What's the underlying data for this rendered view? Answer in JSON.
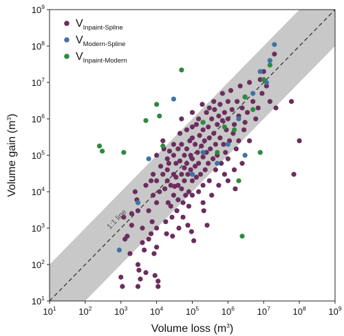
{
  "chart_data": {
    "type": "scatter",
    "xlabel": "Volume loss",
    "xlabel_unit": "m",
    "xlabel_unit_exp": "3",
    "ylabel": "Volume gain",
    "ylabel_unit": "m",
    "ylabel_unit_exp": "3",
    "x_scale": "log",
    "y_scale": "log",
    "xlim": [
      10,
      1000000000
    ],
    "ylim": [
      10,
      1000000000
    ],
    "ticks": [
      {
        "base": "10",
        "exp": "1",
        "value": 10
      },
      {
        "base": "10",
        "exp": "2",
        "value": 100
      },
      {
        "base": "10",
        "exp": "3",
        "value": 1000
      },
      {
        "base": "10",
        "exp": "4",
        "value": 10000
      },
      {
        "base": "10",
        "exp": "5",
        "value": 100000
      },
      {
        "base": "10",
        "exp": "6",
        "value": 1000000
      },
      {
        "base": "10",
        "exp": "7",
        "value": 10000000
      },
      {
        "base": "10",
        "exp": "8",
        "value": 100000000
      },
      {
        "base": "10",
        "exp": "9",
        "value": 1000000000
      }
    ],
    "grid": false,
    "legend_position": "top-left",
    "reference_line": {
      "label": "1:1 line",
      "style": "dashed",
      "color": "#333333"
    },
    "band": {
      "lower_factor": 0.1,
      "upper_factor": 10,
      "color": "#c8c8c8"
    },
    "series": [
      {
        "name_main": "V",
        "name_sub": "Inpaint-Spline",
        "color": "#6b2d5e",
        "points": [
          [
            1000,
            45
          ],
          [
            1100,
            25
          ],
          [
            1200,
            2000
          ],
          [
            1300,
            500
          ],
          [
            1500,
            600
          ],
          [
            1800,
            200
          ],
          [
            2000,
            2500
          ],
          [
            2000,
            1200
          ],
          [
            2500,
            10000
          ],
          [
            2800,
            6000
          ],
          [
            3000,
            3000
          ],
          [
            3000,
            100
          ],
          [
            3200,
            70
          ],
          [
            3500,
            40
          ],
          [
            3000,
            25
          ],
          [
            4000,
            400
          ],
          [
            4000,
            1000
          ],
          [
            4500,
            250
          ],
          [
            5000,
            15000
          ],
          [
            5000,
            60
          ],
          [
            6000,
            3000
          ],
          [
            6000,
            500
          ],
          [
            7000,
            20000
          ],
          [
            7000,
            700
          ],
          [
            7500,
            1500
          ],
          [
            8000,
            30000
          ],
          [
            8000,
            8000
          ],
          [
            8500,
            200
          ],
          [
            9000,
            50
          ],
          [
            10000,
            100000
          ],
          [
            10000,
            20000
          ],
          [
            10000,
            5000
          ],
          [
            10000,
            1000
          ],
          [
            10000,
            300
          ],
          [
            11000,
            35
          ],
          [
            11000,
            25
          ],
          [
            12000,
            10000
          ],
          [
            13000,
            50000
          ],
          [
            15000,
            250000
          ],
          [
            15000,
            30000
          ],
          [
            16000,
            150000
          ],
          [
            17000,
            12000
          ],
          [
            18000,
            1500
          ],
          [
            19000,
            700
          ],
          [
            20000,
            80000
          ],
          [
            20000,
            40000
          ],
          [
            20000,
            20000
          ],
          [
            21000,
            5000
          ],
          [
            22000,
            60000
          ],
          [
            23000,
            130000
          ],
          [
            25000,
            15000
          ],
          [
            25000,
            4000
          ],
          [
            27000,
            2000
          ],
          [
            28000,
            600
          ],
          [
            30000,
            200000
          ],
          [
            30000,
            100000
          ],
          [
            30000,
            30000
          ],
          [
            30000,
            8000
          ],
          [
            32000,
            14000
          ],
          [
            35000,
            60000
          ],
          [
            35000,
            25000
          ],
          [
            37000,
            3000
          ],
          [
            40000,
            150000
          ],
          [
            40000,
            15000
          ],
          [
            40000,
            6000
          ],
          [
            42000,
            1000
          ],
          [
            45000,
            400000
          ],
          [
            45000,
            70000
          ],
          [
            50000,
            1000000
          ],
          [
            50000,
            200000
          ],
          [
            50000,
            30000
          ],
          [
            50000,
            12000
          ],
          [
            55000,
            5000
          ],
          [
            55000,
            2000
          ],
          [
            60000,
            100000
          ],
          [
            60000,
            45000
          ],
          [
            60000,
            20000
          ],
          [
            65000,
            8000
          ],
          [
            70000,
            500000
          ],
          [
            70000,
            150000
          ],
          [
            70000,
            60000
          ],
          [
            75000,
            30000
          ],
          [
            75000,
            1200
          ],
          [
            80000,
            10000
          ],
          [
            80000,
            4000
          ],
          [
            85000,
            250000
          ],
          [
            90000,
            100000
          ],
          [
            90000,
            40000
          ],
          [
            95000,
            800
          ],
          [
            100000,
            1500000
          ],
          [
            100000,
            600000
          ],
          [
            100000,
            300000
          ],
          [
            100000,
            80000
          ],
          [
            100000,
            20000
          ],
          [
            100000,
            8000
          ],
          [
            110000,
            450
          ],
          [
            120000,
            200000
          ],
          [
            120000,
            50000
          ],
          [
            130000,
            700000
          ],
          [
            130000,
            25000
          ],
          [
            140000,
            120000
          ],
          [
            150000,
            1000000
          ],
          [
            150000,
            60000
          ],
          [
            150000,
            10000
          ],
          [
            160000,
            350000
          ],
          [
            170000,
            30000
          ],
          [
            180000,
            180000
          ],
          [
            190000,
            2500000
          ],
          [
            200000,
            800000
          ],
          [
            200000,
            500000
          ],
          [
            200000,
            90000
          ],
          [
            200000,
            15000
          ],
          [
            200000,
            5000
          ],
          [
            210000,
            3000
          ],
          [
            220000,
            250000
          ],
          [
            230000,
            40000
          ],
          [
            250000,
            1500000
          ],
          [
            250000,
            120000
          ],
          [
            260000,
            1200
          ],
          [
            280000,
            600000
          ],
          [
            280000,
            60000
          ],
          [
            300000,
            2000000
          ],
          [
            300000,
            300000
          ],
          [
            300000,
            20000
          ],
          [
            320000,
            150000
          ],
          [
            350000,
            1000000
          ],
          [
            350000,
            8000
          ],
          [
            380000,
            80000
          ],
          [
            400000,
            3000000
          ],
          [
            400000,
            400000
          ],
          [
            420000,
            1800000
          ],
          [
            450000,
            200000
          ],
          [
            450000,
            40000
          ],
          [
            500000,
            700000
          ],
          [
            500000,
            100000
          ],
          [
            550000,
            1200000
          ],
          [
            550000,
            15000
          ],
          [
            600000,
            2500000
          ],
          [
            600000,
            300000
          ],
          [
            650000,
            60000
          ],
          [
            700000,
            5000000
          ],
          [
            700000,
            900000
          ],
          [
            750000,
            200000
          ],
          [
            800000,
            1500000
          ],
          [
            800000,
            30000
          ],
          [
            850000,
            120000
          ],
          [
            900000,
            500000
          ],
          [
            1000000,
            3000000
          ],
          [
            1000000,
            1000000
          ],
          [
            1000000,
            80000
          ],
          [
            1000000,
            20000
          ],
          [
            1100000,
            250000
          ],
          [
            1200000,
            6000000
          ],
          [
            1300000,
            1800000
          ],
          [
            1400000,
            400000
          ],
          [
            1500000,
            700000
          ],
          [
            1500000,
            40000
          ],
          [
            1600000,
            12000
          ],
          [
            1700000,
            150000
          ],
          [
            1800000,
            3000000
          ],
          [
            2000000,
            1200000
          ],
          [
            2000000,
            250000
          ],
          [
            2200000,
            8000000
          ],
          [
            2500000,
            2000000
          ],
          [
            2500000,
            60000
          ],
          [
            2800000,
            500000
          ],
          [
            3000000,
            4000000
          ],
          [
            3000000,
            800000
          ],
          [
            3500000,
            1500000
          ],
          [
            4000000,
            10000000
          ],
          [
            4000000,
            250000
          ],
          [
            5000000,
            3000000
          ],
          [
            6000000,
            1000000
          ],
          [
            7000000,
            2000000
          ],
          [
            8000000,
            12000000
          ],
          [
            9000000,
            5000000
          ],
          [
            10000000,
            20000000
          ],
          [
            12000000,
            8000000
          ],
          [
            15000000,
            3000000
          ],
          [
            20000000,
            60000000
          ],
          [
            22000000,
            2000000
          ],
          [
            60000000,
            3000000
          ],
          [
            70000000,
            30000
          ],
          [
            100000000,
            250000
          ]
        ]
      },
      {
        "name_main": "V",
        "name_sub": "Modern-Spline",
        "color": "#3f73a6",
        "points": [
          [
            900,
            250
          ],
          [
            3000,
            5000
          ],
          [
            6000,
            80000
          ],
          [
            30000,
            3500000
          ],
          [
            100000,
            30000
          ],
          [
            200000,
            120000
          ],
          [
            500000,
            60000
          ],
          [
            1000000,
            200000
          ],
          [
            2000000,
            1000000
          ],
          [
            3000000,
            100000
          ],
          [
            5000000,
            5000000
          ],
          [
            8000000,
            20000000
          ],
          [
            12000000,
            10000000
          ],
          [
            15000000,
            40000000
          ],
          [
            20000000,
            110000000
          ]
        ]
      },
      {
        "name_main": "V",
        "name_sub": "Inpaint-Modern",
        "color": "#2e8a3e",
        "points": [
          [
            250,
            180000
          ],
          [
            300,
            130000
          ],
          [
            1200,
            120000
          ],
          [
            5000,
            900000
          ],
          [
            10000,
            2500000
          ],
          [
            12000,
            1200000
          ],
          [
            15000,
            180000
          ],
          [
            50000,
            22000000
          ],
          [
            200000,
            800000
          ],
          [
            500000,
            120000
          ],
          [
            800000,
            600000
          ],
          [
            1500000,
            500000
          ],
          [
            2000000,
            20000
          ],
          [
            2500000,
            600
          ],
          [
            3000000,
            4000000
          ],
          [
            5000000,
            1800000
          ],
          [
            8000000,
            120000
          ],
          [
            10000000,
            12000000
          ],
          [
            15000000,
            30000000
          ]
        ]
      }
    ]
  }
}
